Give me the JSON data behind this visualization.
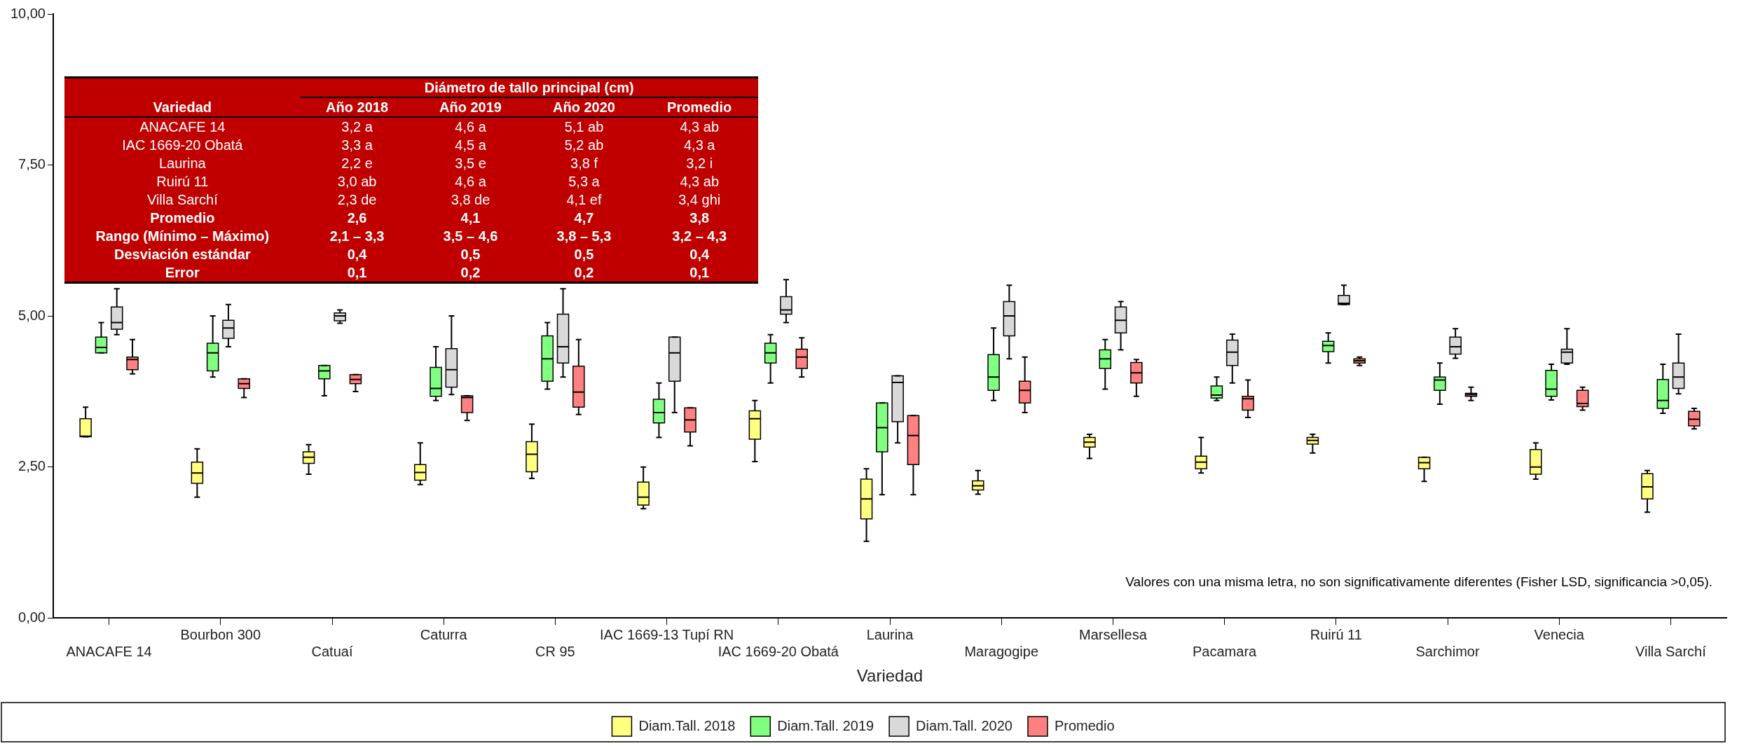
{
  "chart_data": [
    {
      "type": "box",
      "xlabel": "Variedad",
      "categories": [
        "ANACAFE 14",
        "Bourbon 300",
        "Catuaí",
        "Caturra",
        "CR 95",
        "IAC 1669-13 Tupí RN",
        "IAC 1669-20 Obatá",
        "Laurina",
        "Maragogipe",
        "Marsellesa",
        "Pacamara",
        "Ruirú 11",
        "Sarchimor",
        "Venecia",
        "Villa Sarchí"
      ],
      "ylim": [
        0,
        10
      ],
      "yticks": [
        {
          "value": 0,
          "label": "0,00"
        },
        {
          "value": 2.5,
          "label": "2,50"
        },
        {
          "value": 5,
          "label": "5,00"
        },
        {
          "value": 7.5,
          "label": "7,50"
        },
        {
          "value": 10,
          "label": "10,00"
        }
      ],
      "grid": false,
      "legend": "bottom",
      "annotations": [
        "Valores con una misma letra, no son significativamente diferentes (Fisher LSD, significancia >0,05)."
      ],
      "series": [
        {
          "name": "Diam.Tall. 2018",
          "color": "#ffff80",
          "boxes": [
            {
              "low": 3.0,
              "q1": 3.0,
              "median": 3.01,
              "q3": 3.3,
              "high": 3.49
            },
            {
              "low": 2.0,
              "q1": 2.23,
              "median": 2.4,
              "q3": 2.58,
              "high": 2.8
            },
            {
              "low": 2.38,
              "q1": 2.56,
              "median": 2.66,
              "q3": 2.75,
              "high": 2.87
            },
            {
              "low": 2.21,
              "q1": 2.28,
              "median": 2.41,
              "q3": 2.54,
              "high": 2.9
            },
            {
              "low": 2.31,
              "q1": 2.42,
              "median": 2.71,
              "q3": 2.92,
              "high": 3.21
            },
            {
              "low": 1.81,
              "q1": 1.87,
              "median": 2.0,
              "q3": 2.25,
              "high": 2.5
            },
            {
              "low": 2.59,
              "q1": 2.96,
              "median": 3.3,
              "q3": 3.43,
              "high": 3.6
            },
            {
              "low": 1.27,
              "q1": 1.64,
              "median": 1.97,
              "q3": 2.3,
              "high": 2.47
            },
            {
              "low": 2.05,
              "q1": 2.12,
              "median": 2.19,
              "q3": 2.27,
              "high": 2.44
            },
            {
              "low": 2.64,
              "q1": 2.83,
              "median": 2.91,
              "q3": 2.99,
              "high": 3.04
            },
            {
              "low": 2.4,
              "q1": 2.47,
              "median": 2.58,
              "q3": 2.68,
              "high": 2.99
            },
            {
              "low": 2.73,
              "q1": 2.88,
              "median": 2.94,
              "q3": 2.99,
              "high": 3.04
            },
            {
              "low": 2.26,
              "q1": 2.47,
              "median": 2.57,
              "q3": 2.66,
              "high": 2.66
            },
            {
              "low": 2.3,
              "q1": 2.38,
              "median": 2.5,
              "q3": 2.79,
              "high": 2.9
            },
            {
              "low": 1.75,
              "q1": 1.97,
              "median": 2.17,
              "q3": 2.39,
              "high": 2.44
            }
          ]
        },
        {
          "name": "Diam.Tall. 2019",
          "color": "#80ff80",
          "boxes": [
            {
              "low": 4.39,
              "q1": 4.39,
              "median": 4.48,
              "q3": 4.65,
              "high": 4.89
            },
            {
              "low": 3.99,
              "q1": 4.09,
              "median": 4.39,
              "q3": 4.55,
              "high": 5.0
            },
            {
              "low": 3.68,
              "q1": 3.96,
              "median": 4.09,
              "q3": 4.18,
              "high": 4.18
            },
            {
              "low": 3.6,
              "q1": 3.67,
              "median": 3.8,
              "q3": 4.15,
              "high": 4.49
            },
            {
              "low": 3.79,
              "q1": 3.92,
              "median": 4.29,
              "q3": 4.67,
              "high": 4.89
            },
            {
              "low": 2.99,
              "q1": 3.23,
              "median": 3.4,
              "q3": 3.62,
              "high": 3.89
            },
            {
              "low": 3.89,
              "q1": 4.22,
              "median": 4.39,
              "q3": 4.55,
              "high": 4.69
            },
            {
              "low": 2.04,
              "q1": 2.75,
              "median": 3.15,
              "q3": 3.56,
              "high": 3.56
            },
            {
              "low": 3.6,
              "q1": 3.77,
              "median": 3.99,
              "q3": 4.36,
              "high": 4.8
            },
            {
              "low": 3.79,
              "q1": 4.13,
              "median": 4.29,
              "q3": 4.44,
              "high": 4.61
            },
            {
              "low": 3.6,
              "q1": 3.64,
              "median": 3.69,
              "q3": 3.84,
              "high": 3.99
            },
            {
              "low": 4.22,
              "q1": 4.41,
              "median": 4.51,
              "q3": 4.58,
              "high": 4.72
            },
            {
              "low": 3.54,
              "q1": 3.77,
              "median": 3.94,
              "q3": 3.99,
              "high": 4.22
            },
            {
              "low": 3.61,
              "q1": 3.67,
              "median": 3.79,
              "q3": 4.1,
              "high": 4.2
            },
            {
              "low": 3.39,
              "q1": 3.47,
              "median": 3.6,
              "q3": 3.95,
              "high": 4.2
            }
          ]
        },
        {
          "name": "Diam.Tall. 2020",
          "color": "#d9d9d9",
          "boxes": [
            {
              "low": 4.69,
              "q1": 4.78,
              "median": 4.89,
              "q3": 5.15,
              "high": 5.45
            },
            {
              "low": 4.49,
              "q1": 4.63,
              "median": 4.8,
              "q3": 4.93,
              "high": 5.19
            },
            {
              "low": 4.88,
              "q1": 4.92,
              "median": 5.0,
              "q3": 5.05,
              "high": 5.1
            },
            {
              "low": 3.7,
              "q1": 3.82,
              "median": 4.11,
              "q3": 4.46,
              "high": 5.0
            },
            {
              "low": 3.99,
              "q1": 4.22,
              "median": 4.49,
              "q3": 5.03,
              "high": 5.45
            },
            {
              "low": 3.4,
              "q1": 3.92,
              "median": 4.39,
              "q3": 4.65,
              "high": 4.65
            },
            {
              "low": 4.89,
              "q1": 5.03,
              "median": 5.1,
              "q3": 5.32,
              "high": 5.6
            },
            {
              "low": 2.9,
              "q1": 3.25,
              "median": 3.9,
              "q3": 4.01,
              "high": 4.01
            },
            {
              "low": 4.29,
              "q1": 4.67,
              "median": 5.0,
              "q3": 5.24,
              "high": 5.51
            },
            {
              "low": 4.44,
              "q1": 4.72,
              "median": 4.93,
              "q3": 5.15,
              "high": 5.24
            },
            {
              "low": 3.89,
              "q1": 4.18,
              "median": 4.4,
              "q3": 4.6,
              "high": 4.7
            },
            {
              "low": 5.19,
              "q1": 5.19,
              "median": 5.21,
              "q3": 5.34,
              "high": 5.51
            },
            {
              "low": 4.3,
              "q1": 4.37,
              "median": 4.49,
              "q3": 4.65,
              "high": 4.79
            },
            {
              "low": 4.2,
              "q1": 4.22,
              "median": 4.4,
              "q3": 4.45,
              "high": 4.79
            },
            {
              "low": 3.71,
              "q1": 3.8,
              "median": 3.99,
              "q3": 4.22,
              "high": 4.7
            }
          ]
        },
        {
          "name": "Promedio",
          "color": "#ff8080",
          "boxes": [
            {
              "low": 4.04,
              "q1": 4.11,
              "median": 4.28,
              "q3": 4.32,
              "high": 4.61
            },
            {
              "low": 3.65,
              "q1": 3.8,
              "median": 3.88,
              "q3": 3.96,
              "high": 3.96
            },
            {
              "low": 3.75,
              "q1": 3.88,
              "median": 3.95,
              "q3": 4.03,
              "high": 4.03
            },
            {
              "low": 3.27,
              "q1": 3.4,
              "median": 3.65,
              "q3": 3.68,
              "high": 3.68
            },
            {
              "low": 3.37,
              "q1": 3.49,
              "median": 3.74,
              "q3": 4.17,
              "high": 4.61
            },
            {
              "low": 2.85,
              "q1": 3.08,
              "median": 3.28,
              "q3": 3.48,
              "high": 3.48
            },
            {
              "low": 3.99,
              "q1": 4.13,
              "median": 4.32,
              "q3": 4.45,
              "high": 4.64
            },
            {
              "low": 2.04,
              "q1": 2.54,
              "median": 3.02,
              "q3": 3.35,
              "high": 3.35
            },
            {
              "low": 3.4,
              "q1": 3.56,
              "median": 3.77,
              "q3": 3.92,
              "high": 4.32
            },
            {
              "low": 3.67,
              "q1": 3.89,
              "median": 4.06,
              "q3": 4.23,
              "high": 4.28
            },
            {
              "low": 3.32,
              "q1": 3.44,
              "median": 3.63,
              "q3": 3.67,
              "high": 3.94
            },
            {
              "low": 4.18,
              "q1": 4.22,
              "median": 4.26,
              "q3": 4.29,
              "high": 4.32
            },
            {
              "low": 3.6,
              "q1": 3.67,
              "median": 3.7,
              "q3": 3.72,
              "high": 3.82
            },
            {
              "low": 3.44,
              "q1": 3.5,
              "median": 3.55,
              "q3": 3.77,
              "high": 3.82
            },
            {
              "low": 3.13,
              "q1": 3.18,
              "median": 3.29,
              "q3": 3.42,
              "high": 3.47
            }
          ]
        }
      ]
    },
    {
      "type": "other",
      "title": "Diámetro de tallo principal (cm)",
      "ylabel": "Variedad",
      "categories": [
        "Año 2018",
        "Año 2019",
        "Año 2020",
        "Promedio"
      ],
      "y_categories": [
        "ANACAFE 14",
        "IAC 1669-20 Obatá",
        "Laurina",
        "Ruirú 11",
        "Villa Sarchí",
        "Promedio",
        "Rango (Mínimo – Máximo)",
        "Desviación estándar",
        "Error"
      ],
      "cell_labels": [
        [
          "3,2 a",
          "4,6 a",
          "5,1 ab",
          "4,3 ab"
        ],
        [
          "3,3 a",
          "4,5 a",
          "5,2 ab",
          "4,3 a"
        ],
        [
          "2,2 e",
          "3,5 e",
          "3,8 f",
          "3,2 i"
        ],
        [
          "3,0 ab",
          "4,6 a",
          "5,3 a",
          "4,3 ab"
        ],
        [
          "2,3 de",
          "3,8 de",
          "4,1 ef",
          "3,4 ghi"
        ],
        [
          "2,6",
          "4,1",
          "4,7",
          "3,8"
        ],
        [
          "2,1 – 3,3",
          "3,5 – 4,6",
          "3,8 – 5,3",
          "3,2 – 4,3"
        ],
        [
          "0,4",
          "0,5",
          "0,5",
          "0,4"
        ],
        [
          "0,1",
          "0,2",
          "0,2",
          "0,1"
        ]
      ]
    }
  ]
}
